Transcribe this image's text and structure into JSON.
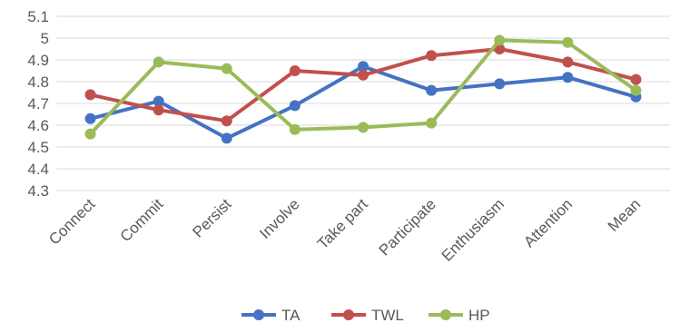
{
  "chart_data": {
    "type": "line",
    "title": "",
    "xlabel": "",
    "ylabel": "",
    "categories": [
      "Connect",
      "Commit",
      "Persist",
      "Involve",
      "Take part",
      "Participate",
      "Enthusiasm",
      "Attention",
      "Mean"
    ],
    "ylim": [
      4.3,
      5.1
    ],
    "yticks": [
      "4.3",
      "4.4",
      "4.5",
      "4.6",
      "4.7",
      "4.8",
      "4.9",
      "5",
      "5.1"
    ],
    "grid": true,
    "legend_position": "bottom",
    "series": [
      {
        "name": "TA",
        "color": "#4472c4",
        "values": [
          4.63,
          4.71,
          4.54,
          4.69,
          4.87,
          4.76,
          4.79,
          4.82,
          4.73
        ]
      },
      {
        "name": "TWL",
        "color": "#c0504d",
        "values": [
          4.74,
          4.67,
          4.62,
          4.85,
          4.83,
          4.92,
          4.95,
          4.89,
          4.81
        ]
      },
      {
        "name": "HP",
        "color": "#9bbb59",
        "values": [
          4.56,
          4.89,
          4.86,
          4.58,
          4.59,
          4.61,
          4.99,
          4.98,
          4.76
        ]
      }
    ]
  }
}
